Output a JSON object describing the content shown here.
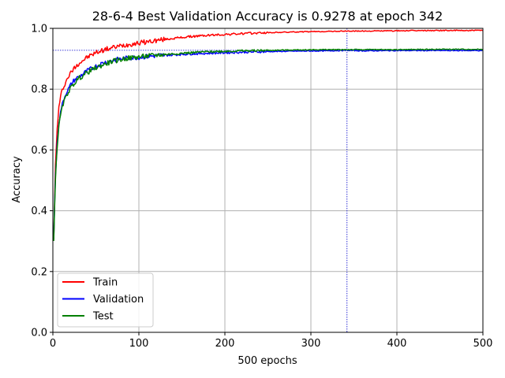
{
  "chart_data": {
    "type": "line",
    "title": "28-6-4 Best Validation Accuracy is 0.9278 at epoch 342",
    "xlabel": "500 epochs",
    "ylabel": "Accuracy",
    "xlim": [
      0,
      500
    ],
    "ylim": [
      0.0,
      1.0
    ],
    "xticks": [
      0,
      100,
      200,
      300,
      400,
      500
    ],
    "yticks": [
      0.0,
      0.2,
      0.4,
      0.6,
      0.8,
      1.0
    ],
    "xtick_labels": [
      "0",
      "100",
      "200",
      "300",
      "400",
      "500"
    ],
    "ytick_labels": [
      "0.0",
      "0.2",
      "0.4",
      "0.6",
      "0.8",
      "1.0"
    ],
    "grid": true,
    "legend_position": "lower-left",
    "best_marker": {
      "epoch": 342,
      "accuracy": 0.9278,
      "color": "#0000cc",
      "style": "dotted"
    },
    "x": [
      1,
      2,
      3,
      5,
      7,
      10,
      13,
      16,
      20,
      25,
      30,
      40,
      50,
      60,
      70,
      80,
      90,
      100,
      120,
      140,
      160,
      180,
      200,
      240,
      280,
      320,
      342,
      360,
      400,
      450,
      500
    ],
    "series": [
      {
        "name": "Train",
        "color": "#ff0000",
        "values": [
          0.31,
          0.43,
          0.55,
          0.67,
          0.74,
          0.79,
          0.81,
          0.83,
          0.85,
          0.87,
          0.885,
          0.905,
          0.92,
          0.93,
          0.937,
          0.943,
          0.948,
          0.952,
          0.96,
          0.967,
          0.973,
          0.977,
          0.98,
          0.985,
          0.988,
          0.99,
          0.991,
          0.991,
          0.992,
          0.993,
          0.993
        ]
      },
      {
        "name": "Validation",
        "color": "#0000ff",
        "values": [
          0.31,
          0.42,
          0.52,
          0.62,
          0.69,
          0.74,
          0.77,
          0.79,
          0.81,
          0.83,
          0.84,
          0.86,
          0.875,
          0.888,
          0.895,
          0.9,
          0.903,
          0.905,
          0.91,
          0.913,
          0.916,
          0.918,
          0.92,
          0.923,
          0.925,
          0.926,
          0.9278,
          0.926,
          0.927,
          0.927,
          0.927
        ]
      },
      {
        "name": "Test",
        "color": "#008000",
        "values": [
          0.3,
          0.41,
          0.51,
          0.61,
          0.68,
          0.73,
          0.76,
          0.78,
          0.8,
          0.82,
          0.835,
          0.855,
          0.87,
          0.882,
          0.892,
          0.898,
          0.903,
          0.906,
          0.912,
          0.916,
          0.92,
          0.923,
          0.925,
          0.927,
          0.929,
          0.93,
          0.93,
          0.93,
          0.93,
          0.931,
          0.931
        ]
      }
    ]
  }
}
